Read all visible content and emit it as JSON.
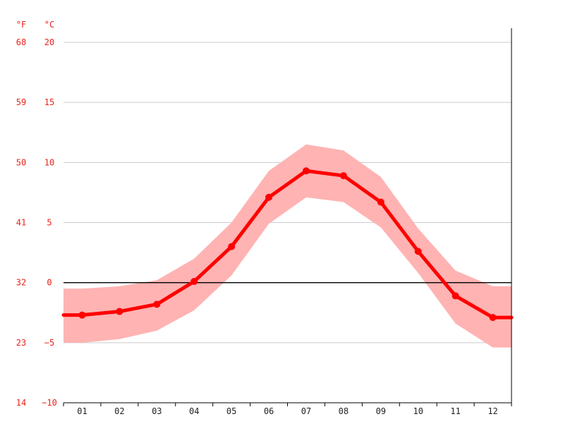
{
  "chart_data": {
    "type": "line",
    "title": "",
    "xlabel": "",
    "ylabel": "",
    "units": {
      "left_outer": "°F",
      "left_inner": "°C"
    },
    "categories": [
      "01",
      "02",
      "03",
      "04",
      "05",
      "06",
      "07",
      "08",
      "09",
      "10",
      "11",
      "12"
    ],
    "ylim": [
      -10,
      20
    ],
    "y_ticks_c": [
      "20",
      "15",
      "10",
      "5",
      "0",
      "−5",
      "−10"
    ],
    "y_ticks_f": [
      "68",
      "59",
      "50",
      "41",
      "32",
      "23",
      "14"
    ],
    "grid": true,
    "legend": "none",
    "series": [
      {
        "values": [
          -2.7,
          -2.4,
          -1.8,
          0.1,
          3.0,
          7.1,
          9.3,
          8.9,
          6.7,
          2.6,
          -1.1,
          -2.9
        ]
      }
    ],
    "band": {
      "upper": [
        -0.5,
        -0.3,
        0.2,
        2.0,
        5.0,
        9.3,
        11.5,
        11.0,
        8.8,
        4.5,
        1.0,
        -0.3
      ],
      "lower": [
        -5.0,
        -4.7,
        -4.0,
        -2.3,
        0.6,
        4.9,
        7.1,
        6.7,
        4.6,
        0.8,
        -3.4,
        -5.4
      ]
    },
    "colors": {
      "line": "#ff0000",
      "band": "#ffb3b3",
      "ticks": "#e8221a",
      "grid": "#cccccc",
      "zero": "#000000"
    }
  }
}
